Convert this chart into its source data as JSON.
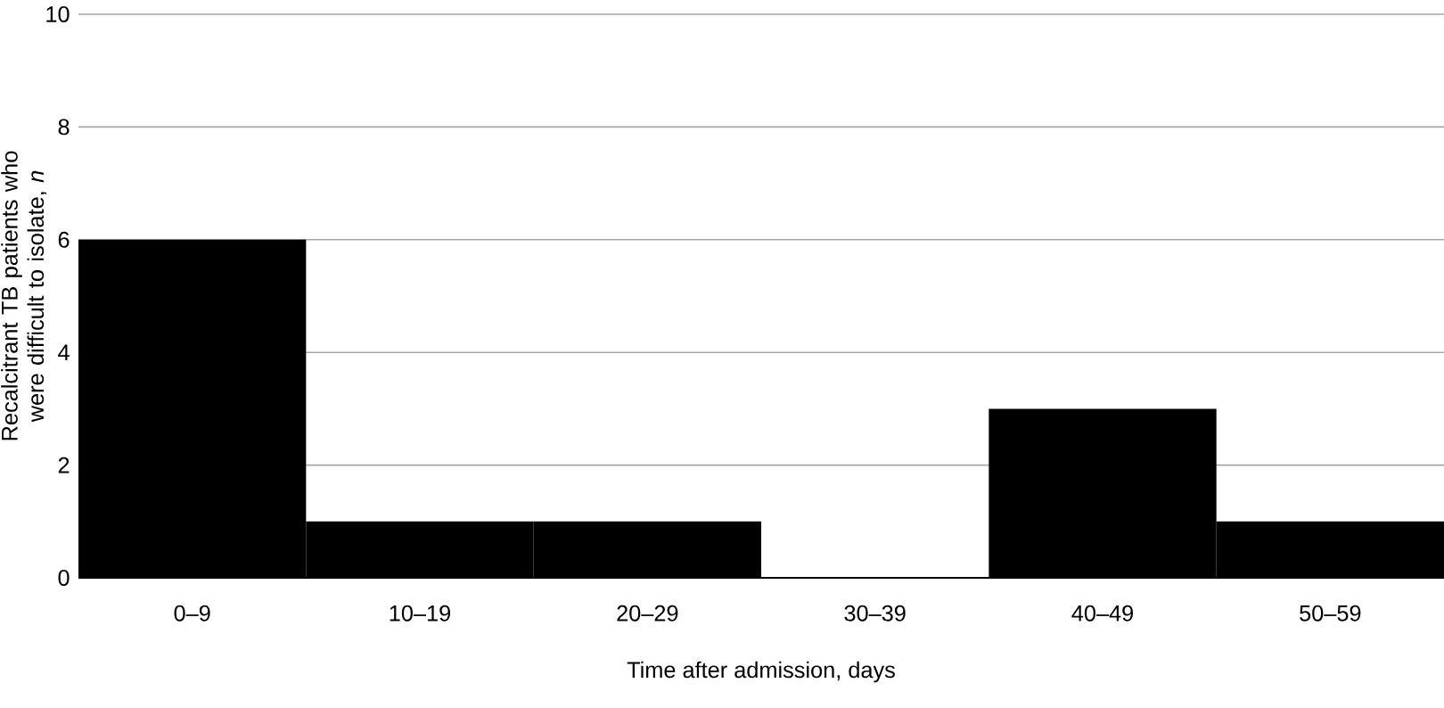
{
  "chart_data": {
    "type": "bar",
    "xlabel": "Time after admission, days",
    "ylabel": "Recalcitrant TB patients who were difficult to isolate, *n*",
    "categories": [
      "0–9",
      "10–19",
      "20–29",
      "30–39",
      "40–49",
      "50–59"
    ],
    "values": [
      6,
      1,
      1,
      0,
      3,
      1
    ],
    "color": "#000000",
    "ylim": [
      0,
      10
    ],
    "yticks": [
      0,
      2,
      4,
      6,
      8,
      10
    ],
    "grid": "y"
  }
}
